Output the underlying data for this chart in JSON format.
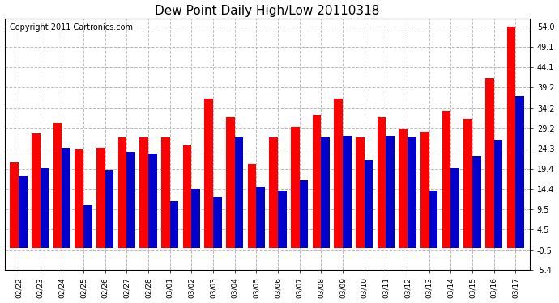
{
  "title": "Dew Point Daily High/Low 20110318",
  "copyright": "Copyright 2011 Cartronics.com",
  "categories": [
    "02/22",
    "02/23",
    "02/24",
    "02/25",
    "02/26",
    "02/27",
    "02/28",
    "03/01",
    "03/02",
    "03/03",
    "03/04",
    "03/05",
    "03/06",
    "03/07",
    "03/08",
    "03/09",
    "03/10",
    "03/11",
    "03/12",
    "03/13",
    "03/14",
    "03/15",
    "03/16",
    "03/17"
  ],
  "highs": [
    21.0,
    28.0,
    30.5,
    24.0,
    24.5,
    27.0,
    27.0,
    27.0,
    25.0,
    36.5,
    32.0,
    20.5,
    27.0,
    29.5,
    32.5,
    36.5,
    27.0,
    32.0,
    29.0,
    28.5,
    33.5,
    31.5,
    41.5,
    54.0
  ],
  "lows": [
    17.5,
    19.5,
    24.5,
    10.5,
    19.0,
    23.5,
    23.0,
    11.5,
    14.5,
    12.5,
    27.0,
    15.0,
    14.0,
    16.5,
    27.0,
    27.5,
    21.5,
    27.5,
    27.0,
    14.0,
    19.5,
    22.5,
    26.5,
    37.0
  ],
  "high_color": "#ff0000",
  "low_color": "#0000cc",
  "bg_color": "#ffffff",
  "grid_color": "#bbbbbb",
  "yticks": [
    54.0,
    49.1,
    44.1,
    39.2,
    34.2,
    29.2,
    24.3,
    19.4,
    14.4,
    9.5,
    4.5,
    -0.5,
    -5.4
  ],
  "ylim": [
    -5.4,
    56.0
  ],
  "title_fontsize": 11,
  "copyright_fontsize": 7,
  "bar_width": 0.4
}
